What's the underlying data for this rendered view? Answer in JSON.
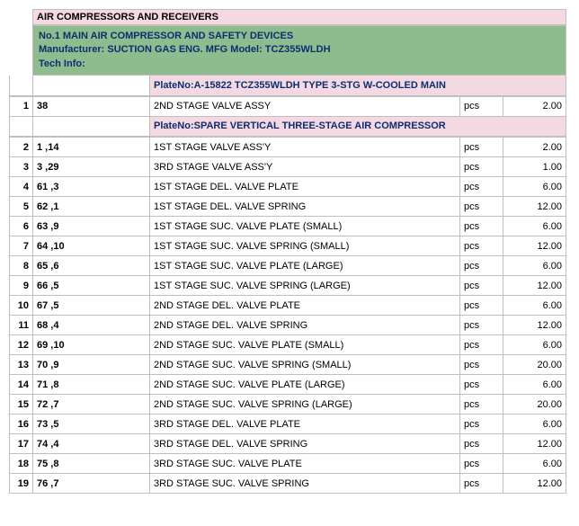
{
  "title": "AIR COMPRESSORS AND RECEIVERS",
  "header": {
    "line1": "No.1 MAIN AIR COMPRESSOR AND SAFETY DEVICES",
    "line2": "Manufacturer: SUCTION GAS ENG. MFG     Model: TCZ355WLDH",
    "line3": "Tech Info:"
  },
  "plate1": "PlateNo:A-15822 TCZ355WLDH TYPE 3-STG W-COOLED MAIN",
  "plate2": "PlateNo:SPARE VERTICAL THREE-STAGE AIR COMPRESSOR",
  "group1": [
    {
      "idx": "1",
      "code": "38",
      "desc": "2ND STAGE VALVE ASSY",
      "unit": "pcs",
      "qty": "2.00"
    }
  ],
  "group2": [
    {
      "idx": "2",
      "code": "1 ,14",
      "desc": "1ST STAGE VALVE ASS'Y",
      "unit": "pcs",
      "qty": "2.00"
    },
    {
      "idx": "3",
      "code": "3 ,29",
      "desc": "3RD STAGE VALVE ASS'Y",
      "unit": "pcs",
      "qty": "1.00"
    },
    {
      "idx": "4",
      "code": "61 ,3",
      "desc": "1ST STAGE DEL. VALVE PLATE",
      "unit": "pcs",
      "qty": "6.00"
    },
    {
      "idx": "5",
      "code": "62 ,1",
      "desc": "1ST STAGE DEL. VALVE SPRING",
      "unit": "pcs",
      "qty": "12.00"
    },
    {
      "idx": "6",
      "code": "63 ,9",
      "desc": "1ST STAGE SUC. VALVE PLATE (SMALL)",
      "unit": "pcs",
      "qty": "6.00"
    },
    {
      "idx": "7",
      "code": "64 ,10",
      "desc": "1ST STAGE SUC. VALVE SPRING (SMALL)",
      "unit": "pcs",
      "qty": "12.00"
    },
    {
      "idx": "8",
      "code": "65 ,6",
      "desc": "1ST STAGE SUC. VALVE PLATE (LARGE)",
      "unit": "pcs",
      "qty": "6.00"
    },
    {
      "idx": "9",
      "code": "66 ,5",
      "desc": "1ST STAGE SUC. VALVE SPRING (LARGE)",
      "unit": "pcs",
      "qty": "12.00"
    },
    {
      "idx": "10",
      "code": "67 ,5",
      "desc": "2ND STAGE DEL. VALVE PLATE",
      "unit": "pcs",
      "qty": "6.00"
    },
    {
      "idx": "11",
      "code": "68 ,4",
      "desc": "2ND STAGE DEL. VALVE SPRING",
      "unit": "pcs",
      "qty": "12.00"
    },
    {
      "idx": "12",
      "code": "69 ,10",
      "desc": "2ND STAGE SUC. VALVE PLATE (SMALL)",
      "unit": "pcs",
      "qty": "6.00"
    },
    {
      "idx": "13",
      "code": "70 ,9",
      "desc": "2ND STAGE SUC. VALVE SPRING (SMALL)",
      "unit": "pcs",
      "qty": "20.00"
    },
    {
      "idx": "14",
      "code": "71 ,8",
      "desc": "2ND STAGE SUC. VALVE PLATE (LARGE)",
      "unit": "pcs",
      "qty": "6.00"
    },
    {
      "idx": "15",
      "code": "72 ,7",
      "desc": "2ND STAGE SUC. VALVE SPRING (LARGE)",
      "unit": "pcs",
      "qty": "20.00"
    },
    {
      "idx": "16",
      "code": "73 ,5",
      "desc": "3RD STAGE DEL. VALVE PLATE",
      "unit": "pcs",
      "qty": "6.00"
    },
    {
      "idx": "17",
      "code": "74 ,4",
      "desc": "3RD STAGE DEL. VALVE SPRING",
      "unit": "pcs",
      "qty": "12.00"
    },
    {
      "idx": "18",
      "code": "75 ,8",
      "desc": "3RD STAGE SUC.  VALVE PLATE",
      "unit": "pcs",
      "qty": "6.00"
    },
    {
      "idx": "19",
      "code": "76 ,7",
      "desc": "3RD STAGE SUC.  VALVE SPRING",
      "unit": "pcs",
      "qty": "12.00"
    }
  ]
}
